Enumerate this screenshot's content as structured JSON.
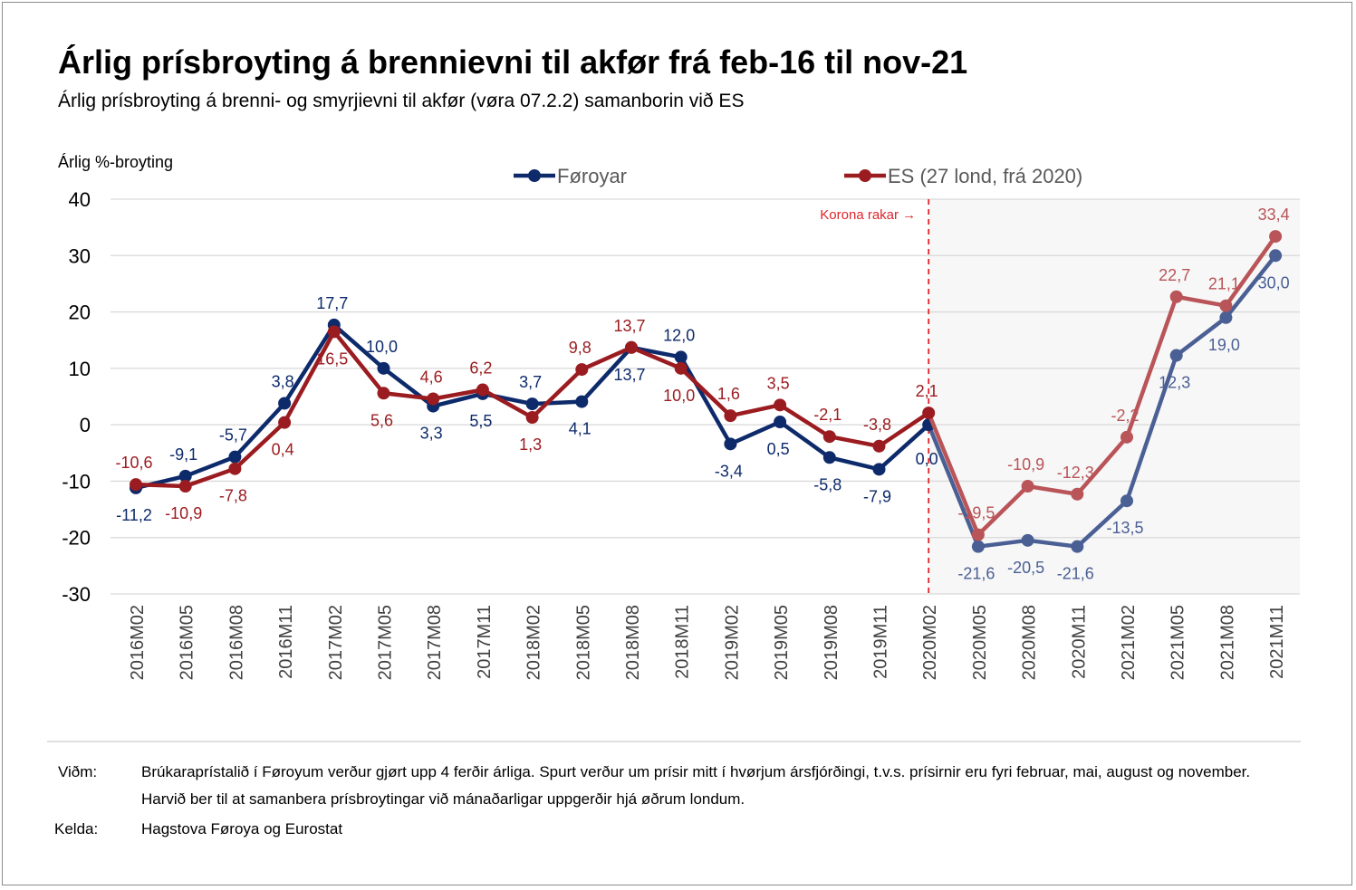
{
  "title": "Árlig prísbroyting á brennievni til akfør frá feb-16 til nov-21",
  "subtitle": "Árlig prísbroyting á brenni- og smyrjievni til akfør (vøra 07.2.2) samanborin við ES",
  "footer": {
    "note_label": "Viðm:",
    "note_text": "Brúkaraprístalið í Føroyum verður gjørt upp 4 ferðir árliga. Spurt verður um prísir mitt í hvørjum ársfjórðingi, t.v.s. prísirnir eru fyri februar, mai, august og november. Harvið ber til at samanbera prísbroytingar við mánaðarligar uppgerðir hjá øðrum londum.",
    "source_label": "Kelda:",
    "source_text": "Hagstova Føroya og Eurostat"
  },
  "chart_data": {
    "type": "line",
    "ylabel": "Árlig %-broyting",
    "ylim": [
      -30,
      40
    ],
    "yticks": [
      "40",
      "30",
      "20",
      "10",
      "0",
      "-10",
      "-20",
      "-30"
    ],
    "grid": true,
    "legend_position": "top-center",
    "categories": [
      "2016M02",
      "2016M05",
      "2016M08",
      "2016M11",
      "2017M02",
      "2017M05",
      "2017M08",
      "2017M11",
      "2018M02",
      "2018M05",
      "2018M08",
      "2018M11",
      "2019M02",
      "2019M05",
      "2019M08",
      "2019M11",
      "2020M02",
      "2020M05",
      "2020M08",
      "2020M11",
      "2021M02",
      "2021M05",
      "2021M08",
      "2021M11"
    ],
    "series": [
      {
        "name": "Føroyar",
        "color": "#0d2a6b",
        "color_after_marker": "#4a5f94",
        "values": [
          -11.2,
          -9.1,
          -5.7,
          3.8,
          17.7,
          10.0,
          3.3,
          5.5,
          3.7,
          4.1,
          13.7,
          12.0,
          -3.4,
          0.5,
          -5.8,
          -7.9,
          0.0,
          -21.6,
          -20.5,
          -21.6,
          -13.5,
          12.3,
          19.0,
          30.0
        ],
        "labels": [
          "-11,2",
          "-9,1",
          "-5,7",
          "3,8",
          "17,7",
          "10,0",
          "3,3",
          "5,5",
          "3,7",
          "4,1",
          "13,7",
          "12,0",
          "-3,4",
          "0,5",
          "-5,8",
          "-7,9",
          "0,0",
          "-21,6",
          "-20,5",
          "-21,6",
          "-13,5",
          "12,3",
          "19,0",
          "30,0"
        ]
      },
      {
        "name": "ES (27 lond, frá 2020)",
        "color": "#9b1c20",
        "color_after_marker": "#b95458",
        "values": [
          -10.6,
          -10.9,
          -7.8,
          0.4,
          16.5,
          5.6,
          4.6,
          6.2,
          1.3,
          9.8,
          13.7,
          10.0,
          1.6,
          3.5,
          -2.1,
          -3.8,
          2.1,
          -19.5,
          -10.9,
          -12.3,
          -2.2,
          22.7,
          21.1,
          33.4
        ],
        "labels": [
          "-10,6",
          "-10,9",
          "-7,8",
          "0,4",
          "16,5",
          "5,6",
          "4,6",
          "6,2",
          "1,3",
          "9,8",
          "13,7",
          "10,0",
          "1,6",
          "3,5",
          "-2,1",
          "-3,8",
          "2,1",
          "-19,5",
          "-10,9",
          "-12,3",
          "-2,2",
          "22,7",
          "21,1",
          "33,4"
        ]
      }
    ],
    "marker": {
      "category": "2020M02",
      "label": "Korona rakar →",
      "color": "#e0242b",
      "shaded_after": true,
      "shade_color": "#f7f7f7"
    }
  }
}
